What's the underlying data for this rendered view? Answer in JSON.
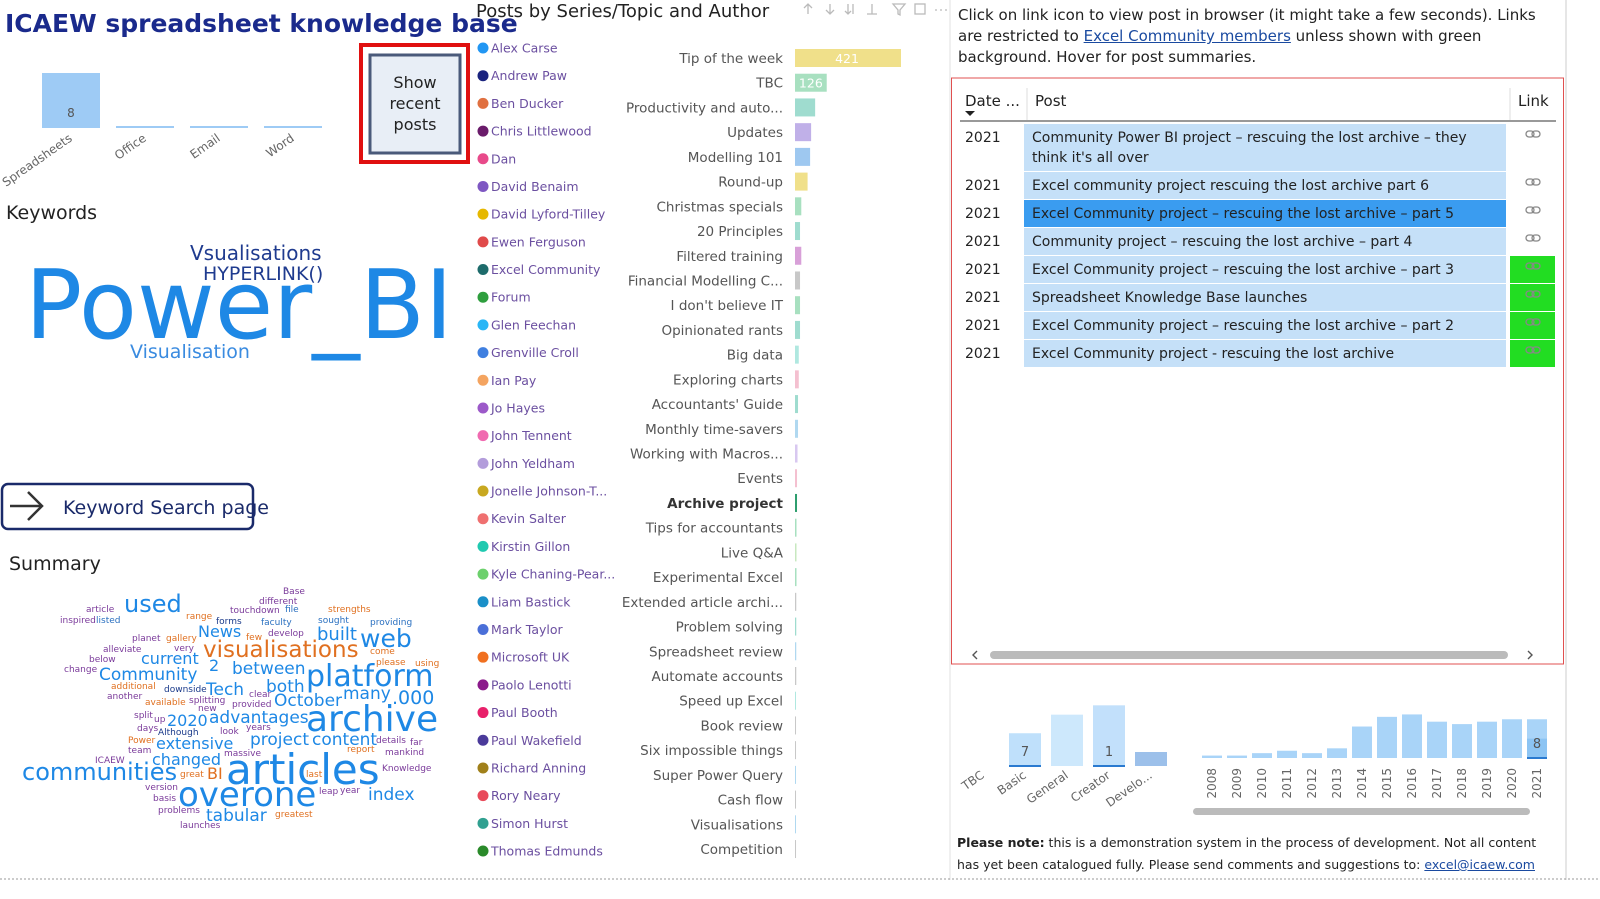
{
  "header": {
    "title": "ICAEW spreadsheet knowledge base"
  },
  "buttons": {
    "recent_posts": "Show recent posts",
    "keyword_search": "Keyword Search page"
  },
  "keywords": {
    "title": "Keywords",
    "words": [
      "Vsualisations",
      "HYPERLINK()",
      "Power_BI",
      "Visualisation"
    ]
  },
  "summary": {
    "title": "Summary",
    "words": [
      "used",
      "article",
      "inspired",
      "listed",
      "range",
      "touchdown",
      "file",
      "different",
      "Base",
      "strengths",
      "forms",
      "faculty",
      "sought",
      "providing",
      "News",
      "built",
      "web",
      "planet",
      "gallery",
      "few",
      "develop",
      "very",
      "come",
      "alleviate",
      "visualisations",
      "please",
      "using",
      "below",
      "current",
      "2",
      "between",
      "change",
      "Community",
      "platform",
      "additional",
      "downside",
      "Tech",
      "clear",
      "both",
      "October",
      "another",
      "available",
      "splitting",
      "provided",
      "many",
      ".000",
      "new",
      "split",
      "up",
      "2020",
      "advantages",
      "archive",
      "days",
      "years",
      "Although",
      "look",
      "Power",
      "project",
      "content",
      "details",
      "far",
      "team",
      "extensive",
      "massive",
      "report",
      "mankind",
      "ICAEW",
      "changed",
      "communities",
      "great",
      "BI",
      "articles",
      "last",
      "Knowledge",
      "version",
      "basis",
      "overone",
      "leap",
      "year",
      "index",
      "problems",
      "tabular",
      "greatest",
      "launches"
    ]
  },
  "chart_data": [
    {
      "type": "bar",
      "categories": [
        "Spreadsheets",
        "Office",
        "Email",
        "Word"
      ],
      "values": [
        8,
        0,
        0,
        0
      ],
      "data_labels": [
        true,
        false,
        false,
        false
      ],
      "color": "#9ecbf5",
      "ylim": [
        0,
        8
      ]
    },
    {
      "type": "hbar",
      "title": "Posts by Series/Topic and Author",
      "categories": [
        "Tip of the week",
        "TBC",
        "Productivity and auto...",
        "Updates",
        "Modelling 101",
        "Round-up",
        "Christmas specials",
        "20 Principles",
        "Filtered training",
        "Financial Modelling C...",
        "I don't believe IT",
        "Opinionated rants",
        "Big data",
        "Exploring charts",
        "Accountants' Guide",
        "Monthly time-savers",
        "Working with Macros...",
        "Events",
        "Archive project",
        "Tips for accountants",
        "Live Q&A",
        "Experimental Excel",
        "Extended article archi...",
        "Problem solving",
        "Spreadsheet review",
        "Automate accounts",
        "Speed up Excel",
        "Book review",
        "Six impossible things",
        "Super Power Query",
        "Cash flow",
        "Visualisations",
        "Competition"
      ],
      "values": [
        421,
        126,
        80,
        64,
        60,
        50,
        25,
        20,
        25,
        20,
        20,
        20,
        15,
        15,
        12,
        12,
        10,
        8,
        8,
        6,
        6,
        6,
        5,
        5,
        5,
        5,
        4,
        4,
        4,
        4,
        4,
        4,
        4
      ],
      "data_labels": [
        true,
        true,
        false,
        false,
        false,
        false,
        false,
        false,
        false,
        false,
        false,
        false,
        false,
        false,
        false,
        false,
        false,
        false,
        false,
        false,
        false,
        false,
        false,
        false,
        false,
        false,
        false,
        false,
        false,
        false,
        false,
        false,
        false
      ],
      "colors": [
        "#f0e08a",
        "#a8e0c0",
        "#9fdccf",
        "#c0b0e8",
        "#9ec8f0",
        "#f0e08a",
        "#a8e0c0",
        "#9fdccf",
        "#d8a0d8",
        "#c8c8c8",
        "#a8e0c0",
        "#9fdccf",
        "#b0e8e0",
        "#f4c0d0",
        "#9fdccf",
        "#b0d8f0",
        "#d8c8f0",
        "#f4c0d0",
        "#2e9e6e",
        "#a8e0c0",
        "#c8e8c0",
        "#a8e0c0",
        "#c8c8c8",
        "#9fdccf",
        "#b0d8f0",
        "#c8c8c8",
        "#b0e8e0",
        "#c8c8c8",
        "#c8c8c8",
        "#b0d8f0",
        "#c8c8c8",
        "#b0d8f0",
        "#c8c8c8"
      ],
      "selected_index": 18,
      "xlim": [
        0,
        421
      ],
      "legend": [
        {
          "name": "Alex Carse",
          "color": "#2196f3"
        },
        {
          "name": "Andrew Paw",
          "color": "#1a237e"
        },
        {
          "name": "Ben Ducker",
          "color": "#e07040"
        },
        {
          "name": "Chris Littlewood",
          "color": "#6a1b6a"
        },
        {
          "name": "Dan",
          "color": "#e84a8a"
        },
        {
          "name": "David Benaim",
          "color": "#7e57c2"
        },
        {
          "name": "David Lyford-Tilley",
          "color": "#e6b800"
        },
        {
          "name": "Ewen Ferguson",
          "color": "#e04a4a"
        },
        {
          "name": "Excel Community",
          "color": "#1d6b6b"
        },
        {
          "name": "Forum",
          "color": "#2e9e3e"
        },
        {
          "name": "Glen Feechan",
          "color": "#29b6f6"
        },
        {
          "name": "Grenville Croll",
          "color": "#3f7fe0"
        },
        {
          "name": "Ian Pay",
          "color": "#f4a460"
        },
        {
          "name": "Jo Hayes",
          "color": "#9c59c9"
        },
        {
          "name": "John Tennent",
          "color": "#f06ab0"
        },
        {
          "name": "John Yeldham",
          "color": "#b39ddb"
        },
        {
          "name": "Jonelle Johnson-T...",
          "color": "#c8a820"
        },
        {
          "name": "Kevin Salter",
          "color": "#ef7070"
        },
        {
          "name": "Kirstin Gillon",
          "color": "#20c9b0"
        },
        {
          "name": "Kyle Chaning-Pear...",
          "color": "#6cd06c"
        },
        {
          "name": "Liam Bastick",
          "color": "#1a8fc8"
        },
        {
          "name": "Mark Taylor",
          "color": "#4a6fd8"
        },
        {
          "name": "Microsoft UK",
          "color": "#f07020"
        },
        {
          "name": "Paolo Lenotti",
          "color": "#8b1a8b"
        },
        {
          "name": "Paul Booth",
          "color": "#e8206a"
        },
        {
          "name": "Paul Wakefield",
          "color": "#4a3a9a"
        },
        {
          "name": "Richard Anning",
          "color": "#a0801a"
        },
        {
          "name": "Rory Neary",
          "color": "#e84a5a"
        },
        {
          "name": "Simon Hurst",
          "color": "#30a090"
        },
        {
          "name": "Thomas Edmunds",
          "color": "#2a8a2a"
        }
      ]
    },
    {
      "type": "bar",
      "categories": [
        "TBC",
        "Basic",
        "General",
        "Creator",
        "Develo..."
      ],
      "values": [
        0,
        7,
        11,
        13,
        3
      ],
      "highlight_values": [
        null,
        7,
        null,
        1,
        null
      ],
      "colors": [
        "#cde8fc",
        "#cde8fc",
        "#cde8fc",
        "#c2e0fb",
        "#9cc0ea"
      ],
      "highlight_color": "#bfe0fb",
      "ylim": [
        0,
        15
      ]
    },
    {
      "type": "bar",
      "categories": [
        "2008",
        "2009",
        "2010",
        "2011",
        "2012",
        "2013",
        "2014",
        "2015",
        "2016",
        "2017",
        "2018",
        "2019",
        "2020",
        "2021"
      ],
      "values": [
        1,
        1,
        2,
        3,
        2,
        4,
        13,
        17,
        18,
        15,
        14,
        15,
        16,
        16
      ],
      "highlight_values": [
        null,
        null,
        null,
        null,
        null,
        null,
        null,
        null,
        null,
        null,
        null,
        null,
        null,
        8
      ],
      "color": "#a9d4f8",
      "highlight_color": "#8cc4f3",
      "ylim": [
        0,
        19
      ]
    }
  ],
  "instructions": {
    "before": "Click on link icon to view post in browser (it might take a few seconds). Links are restricted to ",
    "link": "Excel Community members",
    "after": " unless shown with green background. Hover for post summaries."
  },
  "table": {
    "columns": [
      "Date ...",
      "Post",
      "Link"
    ],
    "rows": [
      {
        "date": "2021",
        "post": "Community Power BI project – rescuing the lost archive – they think it's all over",
        "open_access": false
      },
      {
        "date": "2021",
        "post": "Excel community project rescuing the lost archive part 6",
        "open_access": false
      },
      {
        "date": "2021",
        "post": "Excel Community project – rescuing the lost archive – part 5",
        "open_access": false
      },
      {
        "date": "2021",
        "post": "Community project – rescuing the lost archive – part 4",
        "open_access": false
      },
      {
        "date": "2021",
        "post": "Excel Community project – rescuing the lost archive – part 3",
        "open_access": true
      },
      {
        "date": "2021",
        "post": "Spreadsheet Knowledge Base launches",
        "open_access": true
      },
      {
        "date": "2021",
        "post": "Excel Community project – rescuing the lost archive – part 2",
        "open_access": true
      },
      {
        "date": "2021",
        "post": "Excel Community project - rescuing the lost archive",
        "open_access": true
      }
    ],
    "selected_row": 2
  },
  "note": {
    "bold": "Please note:",
    "text": " this is a demonstration system in the process of development. Not all content has yet been catalogued fully. Please send comments and suggestions to: ",
    "email": "excel@icaew.com"
  }
}
